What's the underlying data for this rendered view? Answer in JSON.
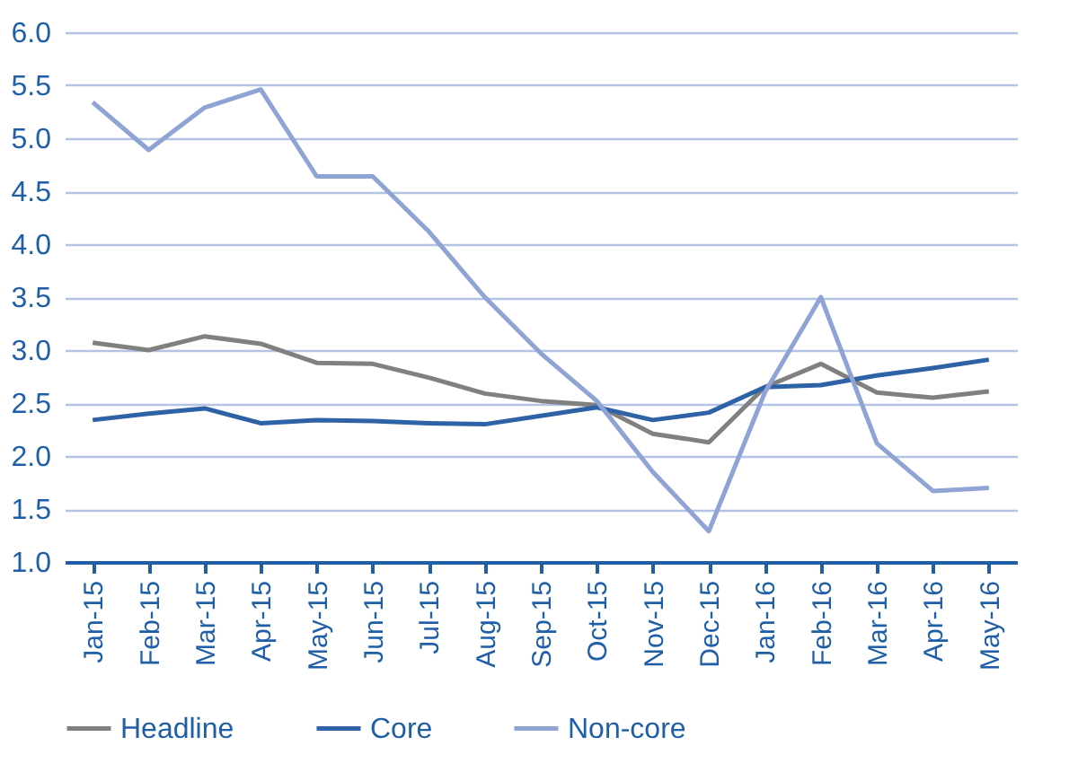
{
  "chart_data": {
    "type": "line",
    "categories": [
      "Jan-15",
      "Feb-15",
      "Mar-15",
      "Apr-15",
      "May-15",
      "Jun-15",
      "Jul-15",
      "Aug-15",
      "Sep-15",
      "Oct-15",
      "Nov-15",
      "Dec-15",
      "Jan-16",
      "Feb-16",
      "Mar-16",
      "Apr-16",
      "May-16"
    ],
    "series": [
      {
        "name": "Headline",
        "color": "#808080",
        "values": [
          3.07,
          3.0,
          3.13,
          3.06,
          2.88,
          2.87,
          2.74,
          2.59,
          2.52,
          2.48,
          2.21,
          2.13,
          2.65,
          2.87,
          2.6,
          2.55,
          2.61
        ]
      },
      {
        "name": "Core",
        "color": "#2e62a6",
        "values": [
          2.34,
          2.4,
          2.45,
          2.31,
          2.34,
          2.33,
          2.31,
          2.3,
          2.38,
          2.46,
          2.34,
          2.41,
          2.65,
          2.67,
          2.76,
          2.83,
          2.91
        ]
      },
      {
        "name": "Non-core",
        "color": "#8fa3d4",
        "values": [
          5.34,
          4.89,
          5.29,
          5.46,
          4.64,
          4.64,
          4.12,
          3.5,
          2.97,
          2.52,
          1.85,
          1.29,
          2.6,
          3.5,
          2.12,
          1.67,
          1.7
        ]
      }
    ],
    "ylim": [
      1.0,
      6.0
    ],
    "yticks": [
      {
        "value": 1,
        "label": "1.0"
      },
      1.5,
      {
        "value": 2,
        "label": "2.0"
      },
      2.5,
      {
        "value": 3,
        "label": "3.0"
      },
      3.5,
      {
        "value": 4,
        "label": "4.0"
      },
      4.5,
      {
        "value": 5,
        "label": "5.0"
      },
      5.5,
      {
        "value": 6,
        "label": "6.0"
      }
    ],
    "grid": "y",
    "legend": "bottom",
    "marker": "none",
    "line_style": "solid"
  }
}
